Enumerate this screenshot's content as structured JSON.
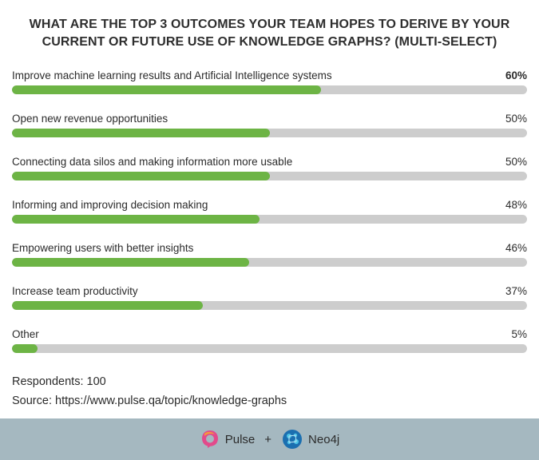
{
  "chart_data": {
    "type": "bar",
    "orientation": "horizontal",
    "title_lines": [
      "WHAT ARE THE TOP 3 OUTCOMES YOUR TEAM HOPES TO DERIVE BY YOUR",
      "CURRENT OR FUTURE USE OF KNOWLEDGE GRAPHS? (MULTI-SELECT)"
    ],
    "categories": [
      "Improve machine learning results and Artificial Intelligence systems",
      "Open new revenue opportunities",
      "Connecting data silos and making information more usable",
      "Informing and improving decision making",
      "Empowering users with better insights",
      "Increase team productivity",
      "Other"
    ],
    "values": [
      60,
      50,
      50,
      48,
      46,
      37,
      5
    ],
    "value_labels": [
      "60%",
      "50%",
      "50%",
      "48%",
      "46%",
      "37%",
      "5%"
    ],
    "xlim": [
      0,
      100
    ],
    "bar_color": "#6db445",
    "track_color": "#cdcdcd"
  },
  "meta": {
    "respondents": "Respondents: 100",
    "source": "Source: https://www.pulse.qa/topic/knowledge-graphs"
  },
  "footer": {
    "brand1": "Pulse",
    "plus": "+",
    "brand2": "Neo4j",
    "background": "#a5b8c0"
  }
}
